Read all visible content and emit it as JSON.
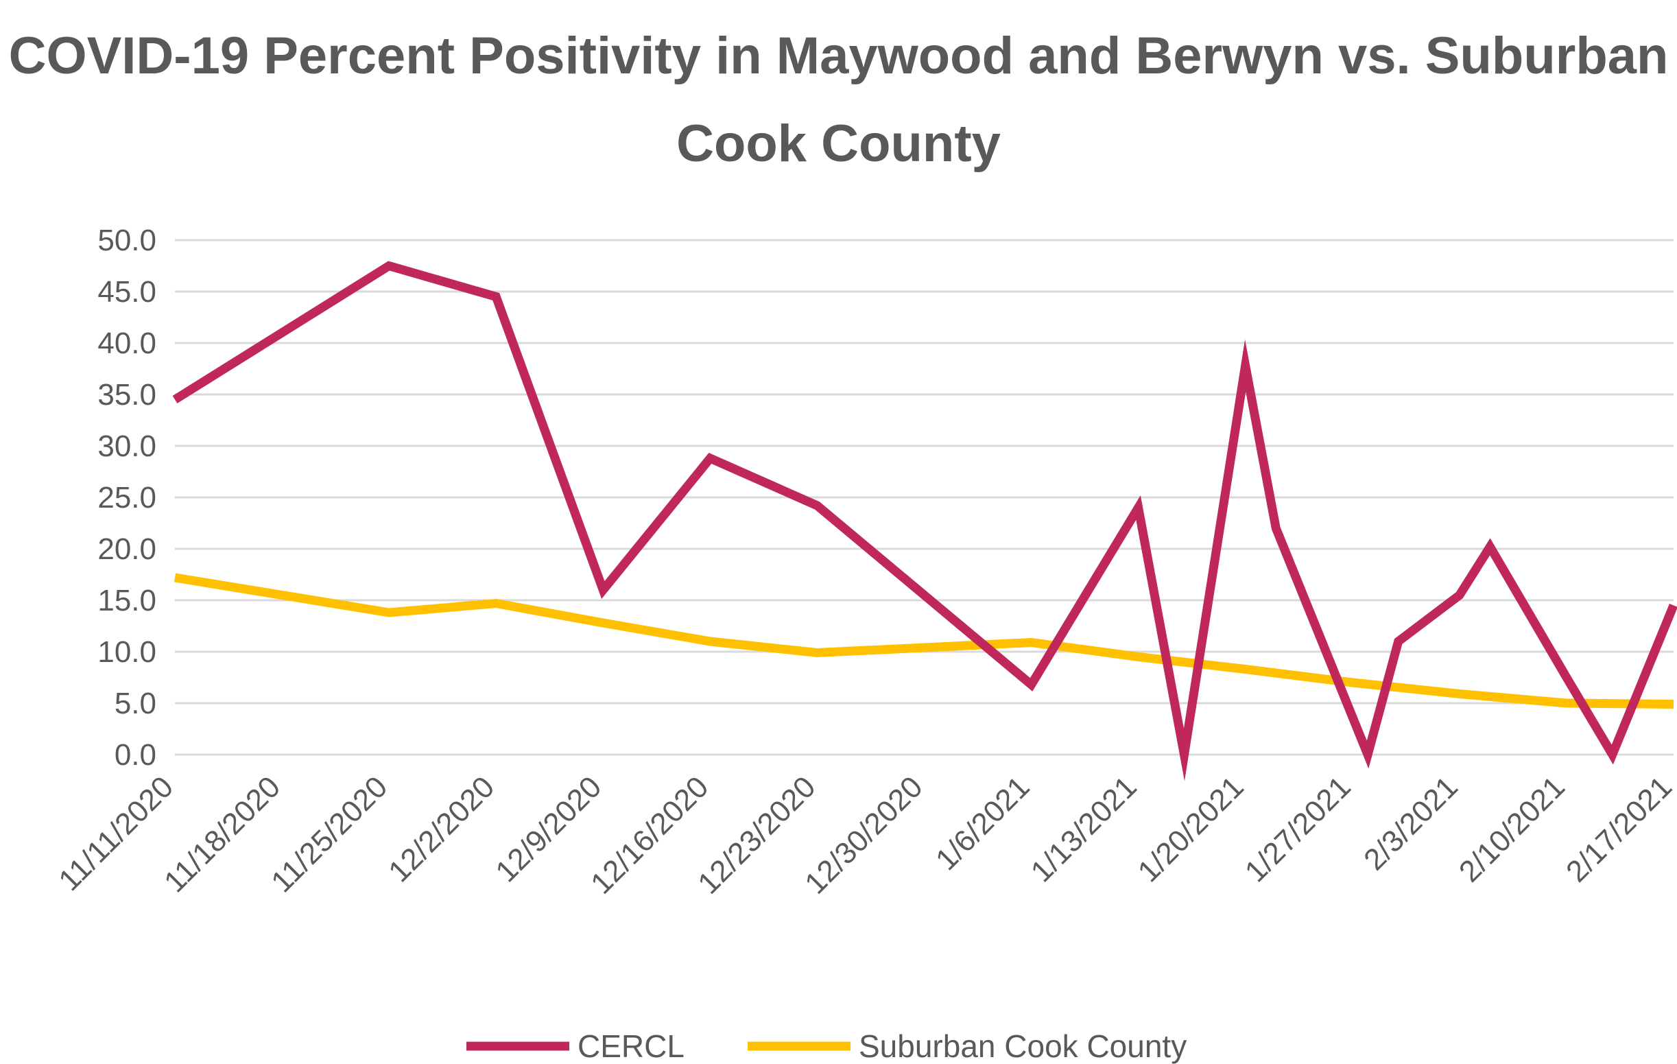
{
  "chart_data": {
    "type": "line",
    "title": "COVID-19 Percent Positivity in Maywood and Berwyn vs. Suburban Cook County",
    "xlabel": "",
    "ylabel": "",
    "ylim": [
      0,
      50
    ],
    "yticks": [
      "0.0",
      "5.0",
      "10.0",
      "15.0",
      "20.0",
      "25.0",
      "30.0",
      "35.0",
      "40.0",
      "45.0",
      "50.0"
    ],
    "x_tick_labels": [
      "11/11/2020",
      "11/18/2020",
      "11/25/2020",
      "12/2/2020",
      "12/9/2020",
      "12/16/2020",
      "12/23/2020",
      "12/30/2020",
      "1/6/2021",
      "1/13/2021",
      "1/20/2021",
      "1/27/2021",
      "2/3/2021",
      "2/10/2021",
      "2/17/2021"
    ],
    "grid": "horizontal",
    "legend_position": "bottom",
    "series": [
      {
        "name": "CERCL",
        "color": "#C0275A",
        "points": [
          [
            "11/11/2020",
            34.5
          ],
          [
            "11/18/2020",
            41.0
          ],
          [
            "11/25/2020",
            47.5
          ],
          [
            "12/2/2020",
            44.5
          ],
          [
            "12/9/2020",
            16.0
          ],
          [
            "12/16/2020",
            28.8
          ],
          [
            "12/23/2020",
            24.2
          ],
          [
            "12/30/2020",
            15.5
          ],
          [
            "1/6/2021",
            6.8
          ],
          [
            "1/13/2021",
            24.0
          ],
          [
            "1/16/2021",
            0.0
          ],
          [
            "1/20/2021",
            37.8
          ],
          [
            "1/22/2021",
            22.0
          ],
          [
            "1/28/2021",
            0.0
          ],
          [
            "1/30/2021",
            11.0
          ],
          [
            "2/3/2021",
            15.5
          ],
          [
            "2/5/2021",
            20.2
          ],
          [
            "2/10/2021",
            7.5
          ],
          [
            "2/13/2021",
            0.0
          ],
          [
            "2/17/2021",
            14.5
          ]
        ]
      },
      {
        "name": "Suburban Cook County",
        "color": "#FFC000",
        "points": [
          [
            "11/11/2020",
            17.2
          ],
          [
            "11/25/2020",
            13.8
          ],
          [
            "12/2/2020",
            14.7
          ],
          [
            "12/9/2020",
            12.8
          ],
          [
            "12/16/2020",
            11.0
          ],
          [
            "12/23/2020",
            9.9
          ],
          [
            "1/6/2021",
            10.9
          ],
          [
            "1/13/2021",
            9.5
          ],
          [
            "1/20/2021",
            8.3
          ],
          [
            "1/27/2021",
            7.0
          ],
          [
            "2/3/2021",
            5.9
          ],
          [
            "2/10/2021",
            5.0
          ],
          [
            "2/17/2021",
            4.9
          ]
        ]
      }
    ]
  }
}
